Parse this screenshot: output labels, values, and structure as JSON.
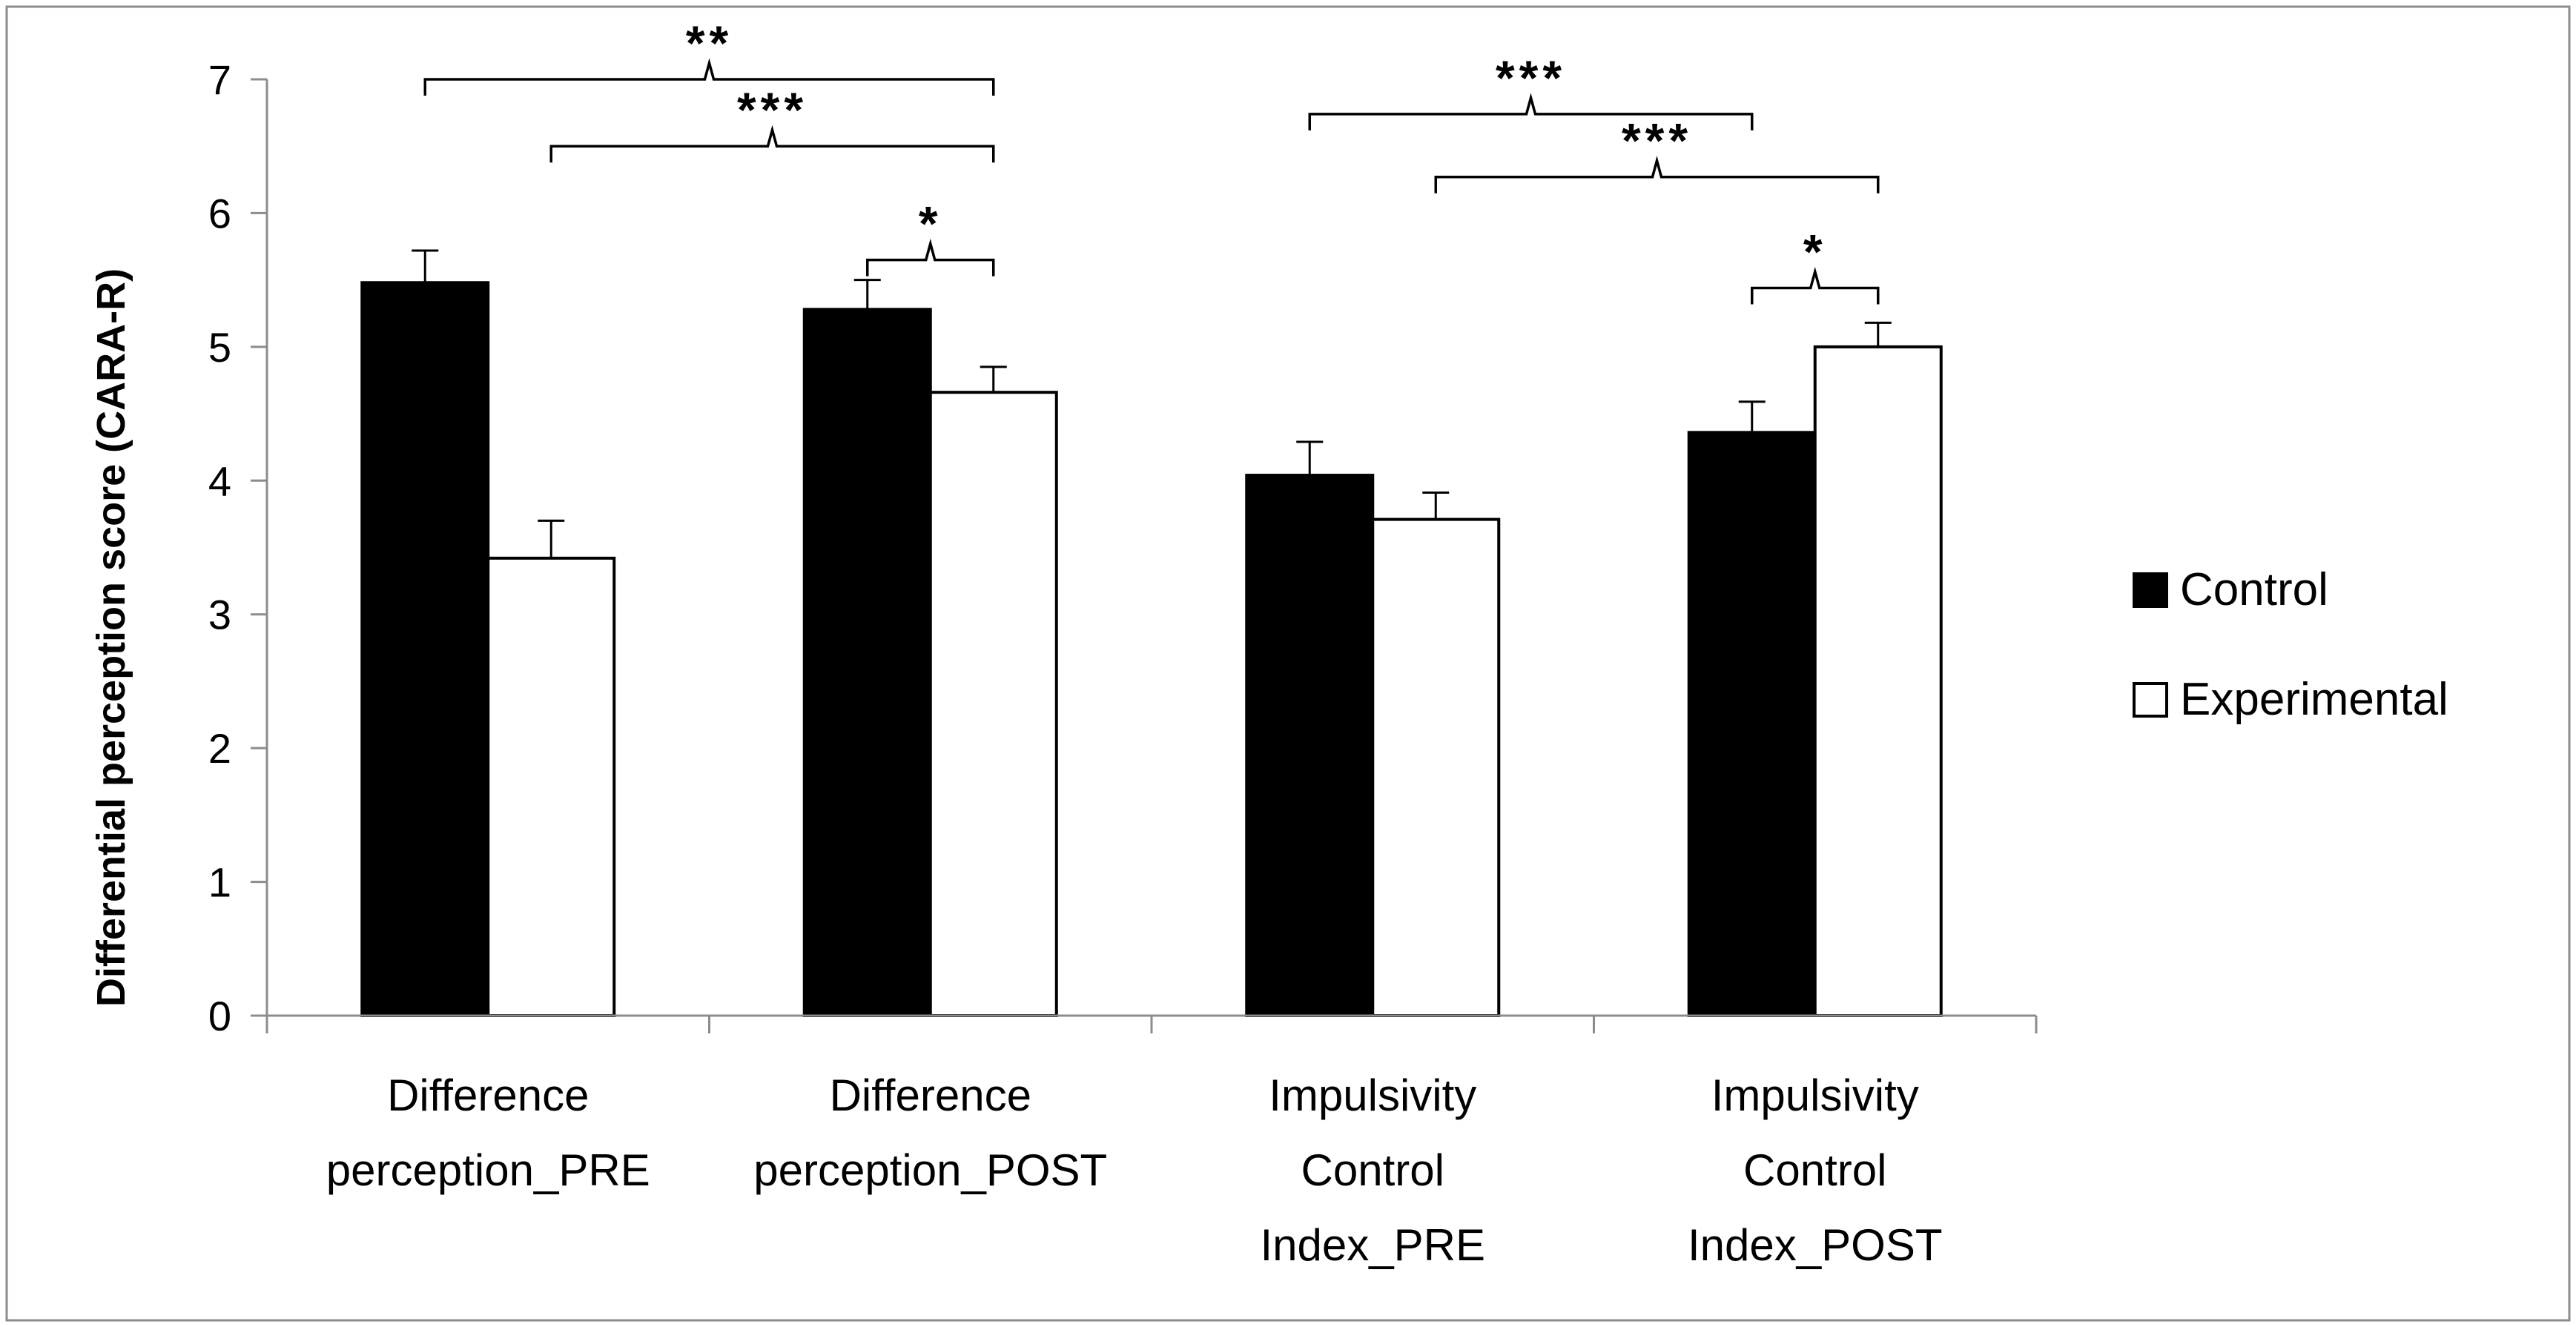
{
  "chart_data": {
    "type": "bar",
    "title": "",
    "xlabel": "",
    "ylabel": "Differential perception score (CARA-R)",
    "ylim": [
      0,
      7
    ],
    "yticks": [
      "0",
      "1",
      "2",
      "3",
      "4",
      "5",
      "6",
      "7"
    ],
    "grid": false,
    "legend_position": "right",
    "categories": [
      [
        "Difference",
        "perception_PRE"
      ],
      [
        "Difference",
        "perception_POST"
      ],
      [
        "Impulsivity",
        "Control",
        "Index_PRE"
      ],
      [
        "Impulsivity",
        "Control",
        "Index_POST"
      ]
    ],
    "series": [
      {
        "name": "Control",
        "fill": "#000000",
        "values": [
          5.48,
          5.28,
          4.04,
          4.36
        ],
        "errors": [
          0.24,
          0.22,
          0.25,
          0.23
        ]
      },
      {
        "name": "Experimental",
        "fill": "#ffffff",
        "values": [
          3.42,
          4.66,
          3.71,
          5.0
        ],
        "errors": [
          0.28,
          0.19,
          0.2,
          0.18
        ]
      }
    ],
    "significance": [
      {
        "label": "**",
        "from": [
          0,
          0
        ],
        "to": [
          1,
          1
        ],
        "level": 7.0
      },
      {
        "label": "***",
        "from": [
          0,
          1
        ],
        "to": [
          1,
          1
        ],
        "level": 6.5
      },
      {
        "label": "*",
        "from": [
          1,
          0
        ],
        "to": [
          1,
          1
        ],
        "level": 5.65
      },
      {
        "label": "***",
        "from": [
          2,
          0
        ],
        "to": [
          3,
          0
        ],
        "level": 6.74
      },
      {
        "label": "***",
        "from": [
          2,
          1
        ],
        "to": [
          3,
          1
        ],
        "level": 6.27
      },
      {
        "label": "*",
        "from": [
          3,
          0
        ],
        "to": [
          3,
          1
        ],
        "level": 5.44
      }
    ]
  }
}
